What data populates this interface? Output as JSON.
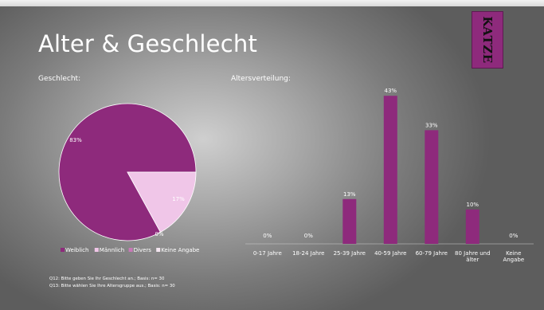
{
  "slide": {
    "title": "Alter & Geschlecht",
    "logo_text": "KATZE",
    "footnotes": [
      "Q12: Bitte geben Sie Ihr Geschlecht an.; Basis: n= 30",
      "Q13: Bitte wählen Sie Ihre Altersgruppe aus.; Basis: n= 30"
    ]
  },
  "colors": {
    "pie_primary": "#8e2a7c",
    "pie_secondary": "#f0c6e8",
    "pie_divers": "#c978b8",
    "pie_keine": "#f4e6f0",
    "bar": "#8e2a7c"
  },
  "chart_data": [
    {
      "type": "pie",
      "title": "Geschlecht:",
      "labels": [
        "Weiblich",
        "Männlich",
        "Divers",
        "Keine Angabe"
      ],
      "values": [
        83,
        17,
        0,
        0
      ],
      "data_labels": [
        "83%",
        "17%",
        "0%",
        ""
      ],
      "legend": "bottom"
    },
    {
      "type": "bar",
      "title": "Altersverteilung:",
      "categories": [
        "0-17 Jahre",
        "18-24 Jahre",
        "25-39 Jahre",
        "40-59 Jahre",
        "60-79 Jahre",
        "80 Jahre und älter",
        "Keine Angabe"
      ],
      "category_lines": [
        [
          "0-17 Jahre"
        ],
        [
          "18-24 Jahre"
        ],
        [
          "25-39 Jahre"
        ],
        [
          "40-59 Jahre"
        ],
        [
          "60-79 Jahre"
        ],
        [
          "80 Jahre und",
          "älter"
        ],
        [
          "Keine",
          "Angabe"
        ]
      ],
      "values": [
        0,
        0,
        13,
        43,
        33,
        10,
        0
      ],
      "data_labels": [
        "0%",
        "0%",
        "13%",
        "43%",
        "33%",
        "10%",
        "0%"
      ],
      "ylim": [
        0,
        50
      ],
      "grid": false
    }
  ]
}
